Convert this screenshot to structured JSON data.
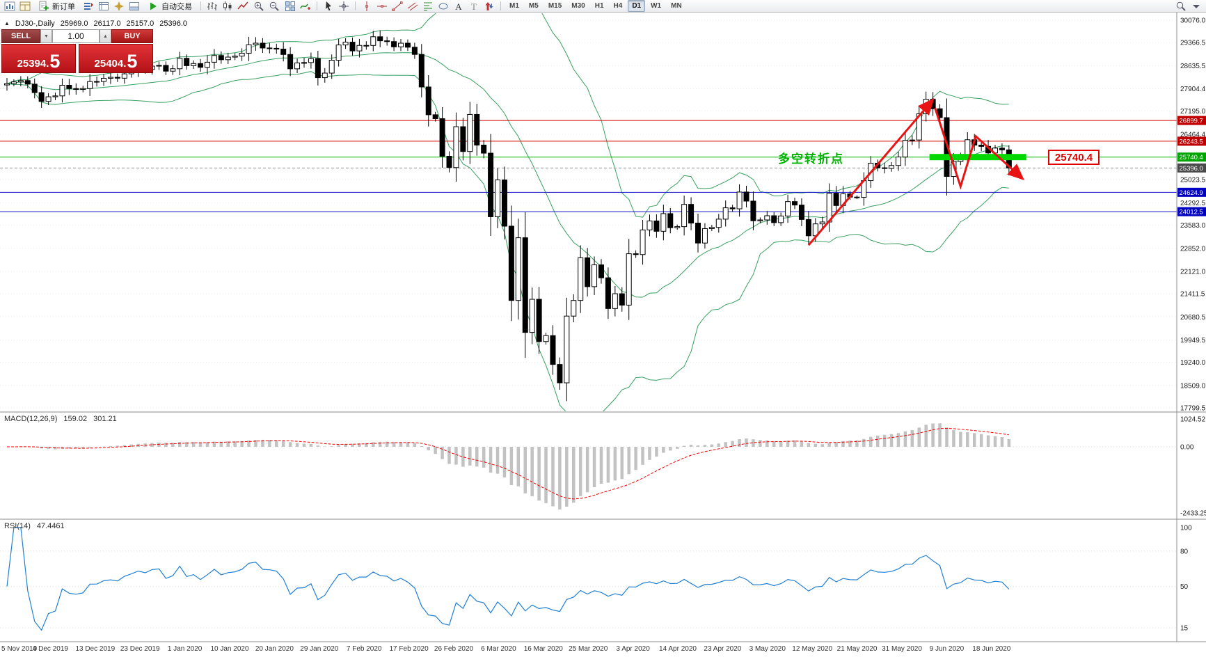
{
  "toolbar": {
    "standard_icons": [
      "new-chart-icon",
      "profiles-icon"
    ],
    "new_order": {
      "label": "新订单",
      "icon": "new-order-icon"
    },
    "panel_icons": [
      "market-watch-icon",
      "data-window-icon",
      "navigator-icon",
      "terminal-icon"
    ],
    "autotrading": {
      "label": "自动交易",
      "icon": "autotrading-icon"
    },
    "chart_type_icons": [
      "bar-chart-icon",
      "candlestick-chart-icon",
      "line-chart-icon"
    ],
    "zoom_icons": [
      "zoom-in-icon",
      "zoom-out-icon"
    ],
    "window_icons": [
      "tile-windows-icon",
      "indicators-icon"
    ],
    "pointer_icons": [
      "cursor-icon",
      "crosshair-icon"
    ],
    "drawing_icons": [
      "vertical-line-icon",
      "horizontal-line-icon",
      "trendline-icon",
      "channel-icon",
      "fibonacci-icon",
      "shapes-icon",
      "text-icon",
      "label-icon",
      "arrows-icon"
    ],
    "timeframes": [
      "M1",
      "M5",
      "M15",
      "M30",
      "H1",
      "H4",
      "D1",
      "W1",
      "MN"
    ],
    "active_timeframe": "D1",
    "right_icons": [
      "search-icon",
      "quick-nav-icon"
    ]
  },
  "one_click": {
    "sell_label": "SELL",
    "buy_label": "BUY",
    "volume": "1.00",
    "spin_down": "▼",
    "spin_up": "▲",
    "sell_price_int": "25394.",
    "sell_price_frac": "5",
    "buy_price_int": "25404.",
    "buy_price_frac": "5"
  },
  "chart_header": {
    "collapse_icon": "▲",
    "symbol_period": "DJ30-,Daily",
    "open": "25969.0",
    "high": "26117.0",
    "low": "25157.0",
    "close": "25396.0"
  },
  "macd_panel": {
    "title": "MACD(12,26,9)",
    "value_main": "159.02",
    "value_signal": "301.21"
  },
  "rsi_panel": {
    "title": "RSI(14)",
    "value": "47.4461"
  },
  "annotations": {
    "turning_point_label": "多空转折点",
    "price_tag_label": "25740.4",
    "turning_bar": {
      "value": 25740.4,
      "i1": 133.5,
      "i2": 147.5,
      "thickness": 9,
      "color": "#00d800"
    },
    "trend_arrows": {
      "color": "#e81414",
      "width": 3,
      "polylines": [
        [
          [
            116,
            22950
          ],
          [
            134,
            27560
          ]
        ],
        [
          [
            134.3,
            27300
          ],
          [
            138,
            24810
          ],
          [
            140.2,
            26400
          ],
          [
            147,
            25050
          ]
        ]
      ]
    }
  },
  "time_axis": {
    "labels": [
      "5 Nov 2019",
      "4 Dec 2019",
      "13 Dec 2019",
      "23 Dec 2019",
      "1 Jan 2020",
      "10 Jan 2020",
      "20 Jan 2020",
      "29 Jan 2020",
      "7 Feb 2020",
      "17 Feb 2020",
      "26 Feb 2020",
      "6 Mar 2020",
      "16 Mar 2020",
      "25 Mar 2020",
      "3 Apr 2020",
      "14 Apr 2020",
      "23 Apr 2020",
      "3 May 2020",
      "12 May 2020",
      "21 May 2020",
      "31 May 2020",
      "9 Jun 2020",
      "18 Jun 2020"
    ]
  },
  "chart_data": {
    "type": "candlestick",
    "symbol": "DJ30-",
    "period": "Daily",
    "price_axis": {
      "max": 30076.0,
      "min": 17799.5,
      "ticks": [
        30076.0,
        29366.5,
        28635.5,
        27904.4,
        27195.0,
        26464.4,
        25023.5,
        24292.5,
        23583.0,
        22852.0,
        22121.0,
        21411.5,
        20680.5,
        19949.5,
        19240.0,
        18509.0,
        17799.5
      ]
    },
    "price_badges": [
      {
        "value": 26899.7,
        "label": "26899.7",
        "bg": "#c00000"
      },
      {
        "value": 26243.5,
        "label": "26243.5",
        "bg": "#c00000"
      },
      {
        "value": 25740.4,
        "label": "25740.4",
        "bg": "#00a400"
      },
      {
        "value": 25396.0,
        "label": "25396.0",
        "bg": "#4a4a4a"
      },
      {
        "value": 24624.9,
        "label": "24624.9",
        "bg": "#0000c0"
      },
      {
        "value": 24012.5,
        "label": "24012.5",
        "bg": "#0000c0"
      }
    ],
    "hlines": [
      {
        "value": 26899.7,
        "color": "#d40000",
        "width": 1
      },
      {
        "value": 26243.5,
        "color": "#d40000",
        "width": 1
      },
      {
        "value": 25740.4,
        "color": "#00b800",
        "width": 1
      },
      {
        "value": 24624.9,
        "color": "#1414c8",
        "width": 1
      },
      {
        "value": 24012.5,
        "color": "#1414c8",
        "width": 1
      },
      {
        "value": 25396.0,
        "color": "#909090",
        "width": 1,
        "dashed": true
      }
    ],
    "closes": [
      28066,
      28121,
      28164,
      28051,
      27783,
      27503,
      27650,
      27678,
      28015,
      27910,
      27882,
      27911,
      28132,
      28135,
      28236,
      28267,
      28239,
      28377,
      28455,
      28551,
      28516,
      28621,
      28645,
      28462,
      28538,
      28869,
      28635,
      28703,
      28584,
      28745,
      28957,
      28824,
      28907,
      28939,
      29030,
      29298,
      29348,
      29196,
      29186,
      29160,
      28990,
      28536,
      28723,
      28734,
      28859,
      28256,
      28400,
      28808,
      29291,
      29380,
      29103,
      29277,
      29276,
      29551,
      29423,
      29398,
      29232,
      29348,
      29220,
      28992,
      27961,
      27081,
      26958,
      25767,
      25409,
      26703,
      25917,
      27091,
      26121,
      25865,
      23851,
      25018,
      23553,
      21201,
      23186,
      20188,
      21237,
      19899,
      20087,
      19174,
      18592,
      20705,
      21201,
      22552,
      21637,
      22327,
      21917,
      20944,
      21413,
      21053,
      22680,
      22654,
      23434,
      23719,
      23391,
      23950,
      23504,
      23538,
      24242,
      23650,
      23019,
      23476,
      23515,
      23775,
      24134,
      24102,
      24634,
      24346,
      23724,
      23750,
      23883,
      23665,
      23876,
      24331,
      24222,
      23765,
      23248,
      23625,
      23685,
      24597,
      24207,
      24576,
      24474,
      24465,
      24995,
      25548,
      25401,
      25383,
      25475,
      25743,
      26270,
      26282,
      27111,
      27572,
      27272,
      26990,
      25128,
      25605,
      25763,
      26290,
      26120,
      26080,
      25871,
      26025,
      25969,
      25396
    ],
    "last_candle_ohlc": [
      25969,
      26117,
      25157,
      25396
    ],
    "bollinger": {
      "period": 20,
      "deviation": 2,
      "color": "#37a05f"
    },
    "macd": {
      "fast": 12,
      "slow": 26,
      "signal_period": 9,
      "histogram_color": "#c2c2c2",
      "signal_color": "#f00000",
      "axis": {
        "max": 1024.52,
        "min": -2433.25,
        "labels": [
          {
            "value": 1024.52,
            "label": "1024.52"
          },
          {
            "value": 0,
            "label": "0.00"
          },
          {
            "value": -2433.25,
            "label": "-2433.25"
          }
        ]
      }
    },
    "rsi": {
      "period": 14,
      "color": "#1f7fd4",
      "axis_marks": [
        100,
        80,
        50,
        15
      ]
    }
  }
}
